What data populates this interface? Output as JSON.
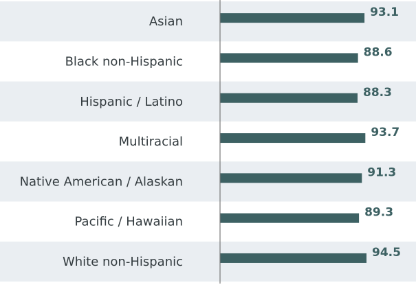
{
  "chart_data": {
    "type": "bar",
    "orientation": "horizontal",
    "categories": [
      "Asian",
      "Black non-Hispanic",
      "Hispanic / Latino",
      "Multiracial",
      "Native American / Alaskan",
      "Pacific / Hawaiian",
      "White non-Hispanic"
    ],
    "values": [
      93.1,
      88.6,
      88.3,
      93.7,
      91.3,
      89.3,
      94.5
    ],
    "value_labels": [
      "93.1",
      "88.6",
      "88.3",
      "93.7",
      "91.3",
      "89.3",
      "94.5"
    ],
    "xlim": [
      0,
      100
    ],
    "title": "",
    "xlabel": "",
    "ylabel": "",
    "grid": false,
    "legend": "none",
    "colors": {
      "bar": "#3d6163",
      "stripe": "#eaeef2",
      "background": "#ffffff",
      "axis": "#777777",
      "label": "#333b3f"
    }
  }
}
